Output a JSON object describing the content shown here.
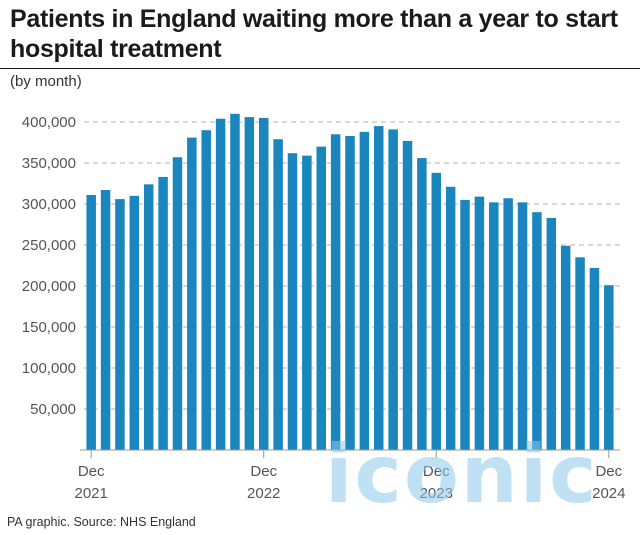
{
  "header": {
    "title": "Patients in England waiting more than a year to start hospital treatment",
    "subtitle": "(by month)"
  },
  "footer": {
    "source": "PA graphic. Source: NHS England",
    "watermark": "iconic"
  },
  "colors": {
    "bar": "#1a86bd",
    "grid": "#b3b3b3",
    "axis": "#999999",
    "text": "#1a1a1a"
  },
  "chart_data": {
    "type": "bar",
    "title": "Patients in England waiting more than a year to start hospital treatment",
    "subtitle": "(by month)",
    "xlabel": "",
    "ylabel": "",
    "ylim": [
      0,
      400000
    ],
    "yticks": [
      50000,
      100000,
      150000,
      200000,
      250000,
      300000,
      350000,
      400000
    ],
    "ytick_labels": [
      "50,000",
      "100,000",
      "150,000",
      "200,000",
      "250,000",
      "300,000",
      "350,000",
      "400,000"
    ],
    "grid": true,
    "xtick_labels": [
      {
        "month": "Dec",
        "year": "2021",
        "index": 0
      },
      {
        "month": "Dec",
        "year": "2022",
        "index": 12
      },
      {
        "month": "Dec",
        "year": "2023",
        "index": 24
      },
      {
        "month": "Dec",
        "year": "2024",
        "index": 36
      }
    ],
    "categories": [
      "Dec 2021",
      "Jan 2022",
      "Feb 2022",
      "Mar 2022",
      "Apr 2022",
      "May 2022",
      "Jun 2022",
      "Jul 2022",
      "Aug 2022",
      "Sep 2022",
      "Oct 2022",
      "Nov 2022",
      "Dec 2022",
      "Jan 2023",
      "Feb 2023",
      "Mar 2023",
      "Apr 2023",
      "May 2023",
      "Jun 2023",
      "Jul 2023",
      "Aug 2023",
      "Sep 2023",
      "Oct 2023",
      "Nov 2023",
      "Dec 2023",
      "Jan 2024",
      "Feb 2024",
      "Mar 2024",
      "Apr 2024",
      "May 2024",
      "Jun 2024",
      "Jul 2024",
      "Aug 2024",
      "Sep 2024",
      "Oct 2024",
      "Nov 2024",
      "Dec 2024"
    ],
    "values": [
      311000,
      317000,
      306000,
      310000,
      324000,
      333000,
      357000,
      381000,
      390000,
      404000,
      410000,
      406000,
      405000,
      379000,
      362000,
      359000,
      370000,
      385000,
      383000,
      388000,
      395000,
      391000,
      377000,
      356000,
      338000,
      321000,
      305000,
      309000,
      302000,
      307000,
      302000,
      290000,
      283000,
      249000,
      235000,
      222000,
      201000
    ]
  }
}
